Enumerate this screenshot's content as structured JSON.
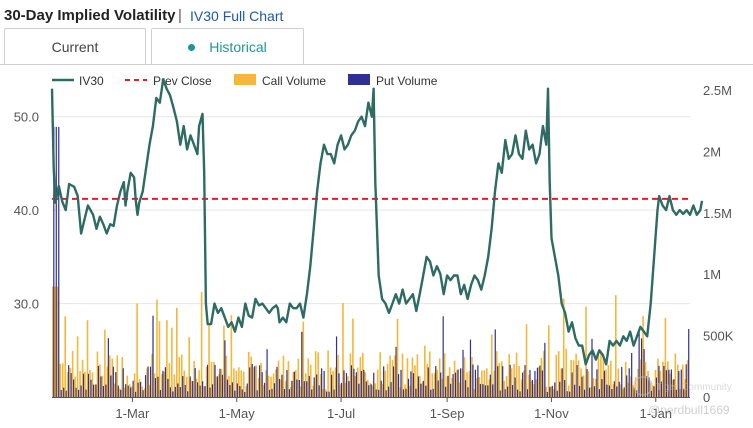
{
  "header": {
    "title": "30-Day Implied Volatility",
    "separator": "|",
    "full_chart_link": "IV30 Full Chart"
  },
  "tabs": [
    {
      "label": "Current",
      "active": false
    },
    {
      "label": "Historical",
      "active": true
    }
  ],
  "colors": {
    "iv_line": "#2e6b63",
    "prev_close": "#e02020",
    "call_volume": "#f5b73b",
    "put_volume": "#2e3192",
    "axis_text": "#555555",
    "grid": "#e6e6e6"
  },
  "chart_data": {
    "type": "line+bar",
    "legend": [
      "IV30",
      "Prev Close",
      "Call Volume",
      "Put Volume"
    ],
    "x_ticks": [
      "1-Mar",
      "1-May",
      "1-Jul",
      "1-Sep",
      "1-Nov",
      "1-Jan"
    ],
    "x_tick_days": [
      47,
      108,
      169,
      231,
      292,
      353
    ],
    "x_range_days": [
      0,
      373
    ],
    "left_axis": {
      "ticks": [
        30.0,
        40.0,
        50.0
      ],
      "tick_labels": [
        "30.0",
        "40.0",
        "50.0"
      ],
      "range": [
        20,
        55
      ]
    },
    "right_axis": {
      "ticks": [
        0,
        500000,
        1000000,
        1500000,
        2000000,
        2500000
      ],
      "tick_labels": [
        "0",
        "500K",
        "1M",
        "1.5M",
        "2M",
        "2.5M"
      ],
      "range": [
        0,
        2500000
      ]
    },
    "prev_close": 41.2,
    "iv30": [
      [
        0,
        53
      ],
      [
        1,
        44.5
      ],
      [
        2,
        40.8
      ],
      [
        4,
        42.6
      ],
      [
        6,
        40.9
      ],
      [
        8,
        40
      ],
      [
        10,
        42.8
      ],
      [
        13,
        42.5
      ],
      [
        15,
        41.5
      ],
      [
        16,
        39.5
      ],
      [
        17,
        37.5
      ],
      [
        19,
        39
      ],
      [
        21,
        40.5
      ],
      [
        24,
        39.5
      ],
      [
        26,
        38
      ],
      [
        28,
        39.3
      ],
      [
        30,
        38.5
      ],
      [
        32,
        37.5
      ],
      [
        34,
        38.5
      ],
      [
        36,
        38.3
      ],
      [
        38,
        40.5
      ],
      [
        40,
        42
      ],
      [
        42,
        43
      ],
      [
        43,
        40.5
      ],
      [
        44,
        42
      ],
      [
        46,
        44
      ],
      [
        48,
        43.5
      ],
      [
        49,
        41
      ],
      [
        50,
        39.5
      ],
      [
        51,
        40.8
      ],
      [
        53,
        42
      ],
      [
        55,
        44.5
      ],
      [
        57,
        47
      ],
      [
        59,
        49
      ],
      [
        61,
        52
      ],
      [
        63,
        51.5
      ],
      [
        65,
        54
      ],
      [
        67,
        53
      ],
      [
        69,
        52.3
      ],
      [
        71,
        51
      ],
      [
        73,
        49.5
      ],
      [
        75,
        47
      ],
      [
        77,
        49
      ],
      [
        79,
        46.5
      ],
      [
        81,
        48
      ],
      [
        83,
        47
      ],
      [
        84,
        46.5
      ],
      [
        85,
        46
      ],
      [
        86,
        49
      ],
      [
        88,
        50.3
      ],
      [
        89,
        44
      ],
      [
        90,
        30
      ],
      [
        91,
        27.8
      ],
      [
        93,
        27.8
      ],
      [
        95,
        30
      ],
      [
        97,
        29
      ],
      [
        99,
        29.5
      ],
      [
        101,
        28.5
      ],
      [
        103,
        27.5
      ],
      [
        105,
        28
      ],
      [
        107,
        27
      ],
      [
        109,
        28.5
      ],
      [
        111,
        27.5
      ],
      [
        113,
        30
      ],
      [
        115,
        28.7
      ],
      [
        117,
        28.5
      ],
      [
        119,
        30.5
      ],
      [
        121,
        29.8
      ],
      [
        123,
        30
      ],
      [
        125,
        29.5
      ],
      [
        127,
        29
      ],
      [
        129,
        29.5
      ],
      [
        131,
        29.8
      ],
      [
        132,
        29.5
      ],
      [
        133,
        28
      ],
      [
        135,
        28.5
      ],
      [
        137,
        28
      ],
      [
        139,
        30
      ],
      [
        141,
        29.5
      ],
      [
        143,
        29.5
      ],
      [
        145,
        30
      ],
      [
        147,
        28.5
      ],
      [
        149,
        31
      ],
      [
        151,
        34
      ],
      [
        153,
        38
      ],
      [
        155,
        42
      ],
      [
        157,
        45
      ],
      [
        159,
        47
      ],
      [
        161,
        46
      ],
      [
        163,
        46
      ],
      [
        165,
        45
      ],
      [
        167,
        47
      ],
      [
        169,
        48
      ],
      [
        171,
        46.5
      ],
      [
        173,
        47
      ],
      [
        175,
        48
      ],
      [
        177,
        48.5
      ],
      [
        179,
        49.5
      ],
      [
        181,
        50
      ],
      [
        183,
        49
      ],
      [
        185,
        51.5
      ],
      [
        187,
        50
      ],
      [
        188,
        53
      ],
      [
        189,
        43
      ],
      [
        191,
        33
      ],
      [
        193,
        30.5
      ],
      [
        195,
        30
      ],
      [
        197,
        29
      ],
      [
        199,
        30
      ],
      [
        201,
        31
      ],
      [
        203,
        30
      ],
      [
        205,
        31.5
      ],
      [
        207,
        30
      ],
      [
        209,
        30.5
      ],
      [
        211,
        31
      ],
      [
        213,
        29.2
      ],
      [
        215,
        31
      ],
      [
        217,
        33
      ],
      [
        219,
        35
      ],
      [
        221,
        34.5
      ],
      [
        223,
        33
      ],
      [
        225,
        34
      ],
      [
        227,
        33.2
      ],
      [
        229,
        31
      ],
      [
        231,
        33
      ],
      [
        233,
        32.5
      ],
      [
        235,
        33
      ],
      [
        237,
        33
      ],
      [
        239,
        31
      ],
      [
        241,
        32
      ],
      [
        243,
        30.5
      ],
      [
        245,
        32
      ],
      [
        247,
        33
      ],
      [
        249,
        32.5
      ],
      [
        251,
        31.5
      ],
      [
        253,
        33
      ],
      [
        255,
        35
      ],
      [
        257,
        38
      ],
      [
        259,
        42
      ],
      [
        261,
        45
      ],
      [
        263,
        44
      ],
      [
        265,
        47.5
      ],
      [
        267,
        45.5
      ],
      [
        269,
        46
      ],
      [
        271,
        48
      ],
      [
        273,
        46
      ],
      [
        275,
        45.5
      ],
      [
        277,
        48.5
      ],
      [
        279,
        46.5
      ],
      [
        281,
        47
      ],
      [
        283,
        45
      ],
      [
        285,
        46
      ],
      [
        287,
        49
      ],
      [
        289,
        47
      ],
      [
        290,
        53
      ],
      [
        291,
        43
      ],
      [
        292,
        37
      ],
      [
        294,
        35
      ],
      [
        296,
        33
      ],
      [
        298,
        30
      ],
      [
        300,
        29
      ],
      [
        302,
        27
      ],
      [
        304,
        28
      ],
      [
        306,
        26.3
      ],
      [
        308,
        25.5
      ],
      [
        310,
        25.5
      ],
      [
        312,
        23.5
      ],
      [
        314,
        24.5
      ],
      [
        316,
        25
      ],
      [
        318,
        24
      ],
      [
        320,
        25
      ],
      [
        322,
        24.5
      ],
      [
        324,
        23.5
      ],
      [
        326,
        26
      ],
      [
        328,
        25.5
      ],
      [
        330,
        26
      ],
      [
        332,
        25.5
      ],
      [
        334,
        26.5
      ],
      [
        336,
        26
      ],
      [
        338,
        27
      ],
      [
        340,
        25.5
      ],
      [
        342,
        26.5
      ],
      [
        344,
        27.5
      ],
      [
        346,
        27
      ],
      [
        348,
        26.5
      ],
      [
        350,
        30
      ],
      [
        352,
        35
      ],
      [
        354,
        40
      ],
      [
        355,
        41.5
      ],
      [
        357,
        40.5
      ],
      [
        359,
        40
      ],
      [
        361,
        41.5
      ],
      [
        363,
        40
      ],
      [
        365,
        39.5
      ],
      [
        367,
        40
      ],
      [
        369,
        39.6
      ],
      [
        371,
        40
      ],
      [
        373,
        39.5
      ],
      [
        375,
        40.5
      ],
      [
        377,
        39.5
      ],
      [
        379,
        40
      ],
      [
        380,
        41
      ]
    ]
  },
  "watermark": {
    "line1": "Tiger Community",
    "line2": "@nerdbull1669"
  }
}
